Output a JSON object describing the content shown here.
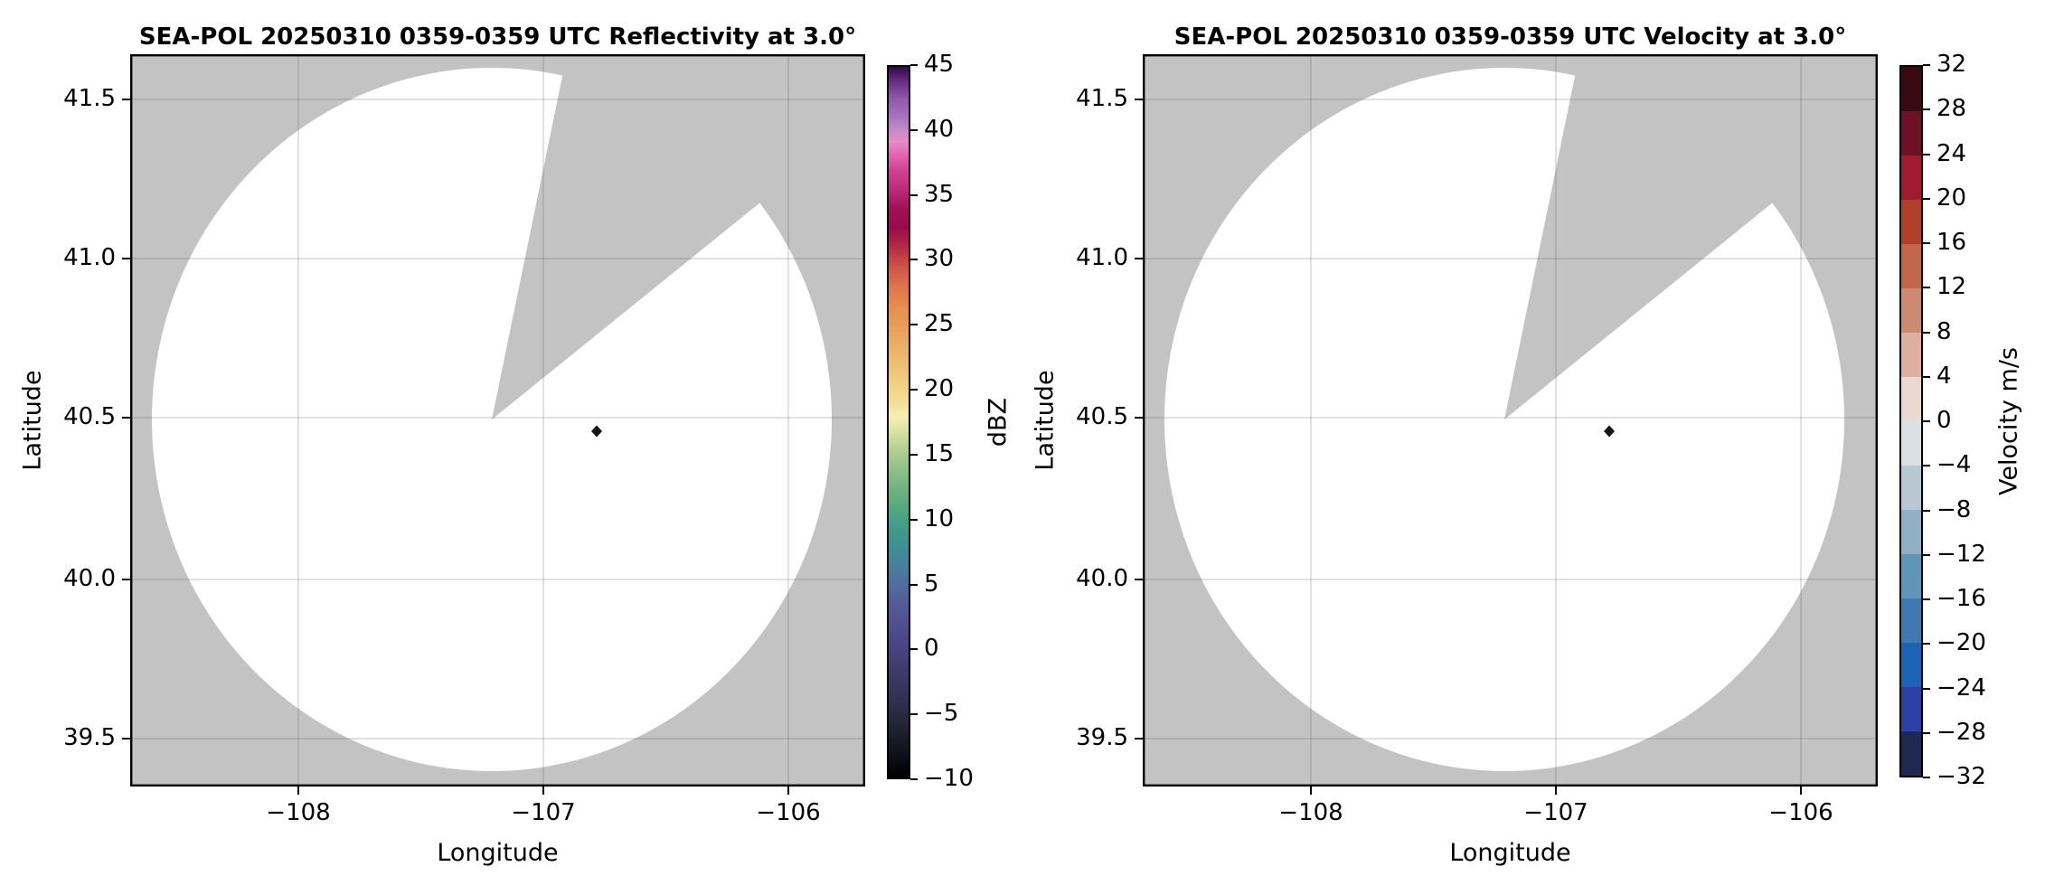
{
  "figure": {
    "background_color": "#ffffff",
    "kind": "dual-panel radar PPI figure"
  },
  "chart_data": [
    {
      "type": "radar_ppi",
      "panel": "left",
      "title": "SEA-POL 20250310 0359-0359 UTC Reflectivity at 3.0°",
      "field": "Reflectivity",
      "xlabel": "Longitude",
      "ylabel": "Latitude",
      "xlim": [
        -108.67,
        -105.69
      ],
      "ylim": [
        39.34,
        41.65
      ],
      "xticks": [
        -108,
        -107,
        -106
      ],
      "xtick_labels": [
        "−108",
        "−107",
        "−106"
      ],
      "yticks": [
        41.5,
        41.0,
        40.5,
        40.0,
        39.5
      ],
      "ytick_labels": [
        "41.5",
        "41.0",
        "40.5",
        "40.0",
        "39.5"
      ],
      "grid": true,
      "radar": {
        "center_lon": -107.21,
        "center_lat": 40.5,
        "scan_circle_radius_deg_lat": 1.1,
        "blanked_sector_azimuth_deg": [
          12,
          52
        ],
        "scan_area_color": "#ffffff",
        "no_data_color": "#c3c3c3",
        "echo_point": {
          "lon": -106.78,
          "lat": 40.45,
          "color": "#141414"
        }
      },
      "colorbar": {
        "label": "dBZ",
        "style": "continuous",
        "range": [
          -10,
          45
        ],
        "ticks": [
          45,
          40,
          35,
          30,
          25,
          20,
          15,
          10,
          5,
          0,
          -5,
          -10
        ],
        "tick_labels": [
          "45",
          "40",
          "35",
          "30",
          "25",
          "20",
          "15",
          "10",
          "5",
          "0",
          "−5",
          "−10"
        ],
        "gradient_stops": [
          {
            "value": -10,
            "color": "#000000"
          },
          {
            "value": -8.5,
            "color": "#0d0f17"
          },
          {
            "value": -7,
            "color": "#191c28"
          },
          {
            "value": -5.5,
            "color": "#26283c"
          },
          {
            "value": -4,
            "color": "#313050"
          },
          {
            "value": -2.5,
            "color": "#3b3763"
          },
          {
            "value": -1,
            "color": "#443f75"
          },
          {
            "value": 0.5,
            "color": "#4b4685"
          },
          {
            "value": 2,
            "color": "#515090"
          },
          {
            "value": 3.5,
            "color": "#535c98"
          },
          {
            "value": 5,
            "color": "#4f6f9d"
          },
          {
            "value": 6.5,
            "color": "#45829b"
          },
          {
            "value": 8,
            "color": "#3d9192"
          },
          {
            "value": 9.5,
            "color": "#429e86"
          },
          {
            "value": 11,
            "color": "#55a981"
          },
          {
            "value": 12.5,
            "color": "#72b483"
          },
          {
            "value": 14,
            "color": "#93c18b"
          },
          {
            "value": 15.5,
            "color": "#b8d094"
          },
          {
            "value": 17,
            "color": "#e0e5a3"
          },
          {
            "value": 18,
            "color": "#f4f0b0"
          },
          {
            "value": 19,
            "color": "#f1df97"
          },
          {
            "value": 20.5,
            "color": "#efd083"
          },
          {
            "value": 22,
            "color": "#edbf71"
          },
          {
            "value": 23.5,
            "color": "#ebae64"
          },
          {
            "value": 25,
            "color": "#e99e58"
          },
          {
            "value": 26.5,
            "color": "#e58c50"
          },
          {
            "value": 28,
            "color": "#dd744b"
          },
          {
            "value": 29.5,
            "color": "#cf5546"
          },
          {
            "value": 31,
            "color": "#b52d43"
          },
          {
            "value": 32.5,
            "color": "#9c0c49"
          },
          {
            "value": 34,
            "color": "#a01055"
          },
          {
            "value": 35.5,
            "color": "#bc2a78"
          },
          {
            "value": 37,
            "color": "#d14492"
          },
          {
            "value": 38.2,
            "color": "#e066ae"
          },
          {
            "value": 39.2,
            "color": "#e88ac9"
          },
          {
            "value": 40.2,
            "color": "#c08ac8"
          },
          {
            "value": 41.2,
            "color": "#a573bb"
          },
          {
            "value": 42.5,
            "color": "#9159a8"
          },
          {
            "value": 43.8,
            "color": "#6c3085"
          },
          {
            "value": 45,
            "color": "#330b45"
          }
        ]
      }
    },
    {
      "type": "radar_ppi",
      "panel": "right",
      "title": "SEA-POL 20250310 0359-0359 UTC Velocity at 3.0°",
      "field": "Velocity",
      "xlabel": "Longitude",
      "ylabel": "Latitude",
      "xlim": [
        -108.67,
        -105.69
      ],
      "ylim": [
        39.34,
        41.65
      ],
      "xticks": [
        -108,
        -107,
        -106
      ],
      "xtick_labels": [
        "−108",
        "−107",
        "−106"
      ],
      "yticks": [
        41.5,
        41.0,
        40.5,
        40.0,
        39.5
      ],
      "ytick_labels": [
        "41.5",
        "41.0",
        "40.5",
        "40.0",
        "39.5"
      ],
      "grid": true,
      "radar": {
        "center_lon": -107.21,
        "center_lat": 40.5,
        "scan_circle_radius_deg_lat": 1.1,
        "blanked_sector_azimuth_deg": [
          12,
          52
        ],
        "scan_area_color": "#ffffff",
        "no_data_color": "#c3c3c3",
        "echo_point": {
          "lon": -106.78,
          "lat": 40.45,
          "color": "#141414"
        }
      },
      "colorbar": {
        "label": "Velocity m/s",
        "style": "discrete",
        "range": [
          -32,
          32
        ],
        "ticks": [
          32,
          28,
          24,
          20,
          16,
          12,
          8,
          4,
          0,
          -4,
          -8,
          -12,
          -16,
          -20,
          -24,
          -28,
          -32
        ],
        "tick_labels": [
          "32",
          "28",
          "24",
          "20",
          "16",
          "12",
          "8",
          "4",
          "0",
          "−4",
          "−8",
          "−12",
          "−16",
          "−20",
          "−24",
          "−28",
          "−32"
        ],
        "segment_colors_top_to_bottom": [
          "#390a12",
          "#6d1127",
          "#a01b2e",
          "#b23f27",
          "#c1664a",
          "#cc8a70",
          "#dcb0a1",
          "#e9d9d2",
          "#dbe0e4",
          "#b7c8d2",
          "#8fb0c2",
          "#5f96b8",
          "#3e79b2",
          "#1c63b5",
          "#2b3fa4",
          "#1e2951"
        ]
      }
    }
  ]
}
